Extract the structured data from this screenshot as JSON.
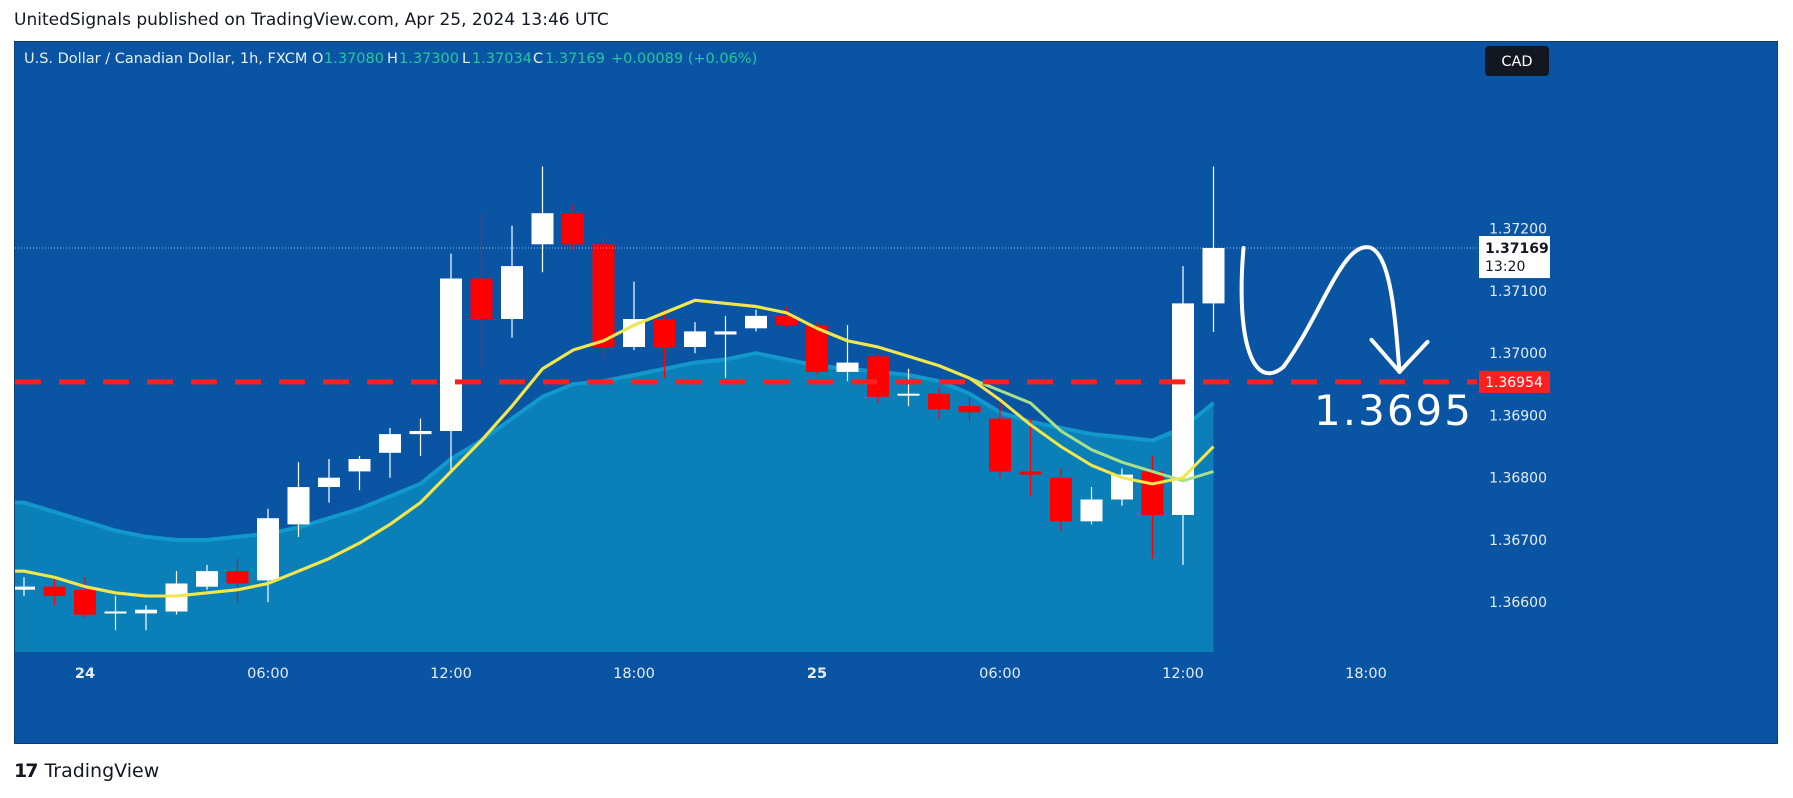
{
  "header": {
    "publisher_line": "UnitedSignals published on TradingView.com, Apr 25, 2024 13:46 UTC"
  },
  "footer": {
    "logo_mark": "17",
    "logo_text": "TradingView"
  },
  "chart_data": {
    "type": "candlestick",
    "symbol_line": "U.S. Dollar / Canadian Dollar, 1h, FXCM",
    "ohlc": {
      "o_label": "O",
      "o_value": "1.37080",
      "h_label": "H",
      "h_value": "1.37300",
      "l_label": "L",
      "l_value": "1.37034",
      "c_label": "C",
      "c_value": "1.37169",
      "change": "+0.00089 (+0.06%)"
    },
    "currency_badge": "CAD",
    "current_price": {
      "value": "1.37169",
      "countdown": "13:20"
    },
    "level_line": {
      "value": 1.36954,
      "label": "1.36954"
    },
    "annotation_text": "1.3695",
    "ylim": [
      1.3652,
      1.375
    ],
    "yticks": [
      {
        "v": 1.372,
        "label": "1.37200"
      },
      {
        "v": 1.371,
        "label": "1.37100"
      },
      {
        "v": 1.37,
        "label": "1.37000"
      },
      {
        "v": 1.369,
        "label": "1.36900"
      },
      {
        "v": 1.368,
        "label": "1.36800"
      },
      {
        "v": 1.367,
        "label": "1.36700"
      },
      {
        "v": 1.366,
        "label": "1.36600"
      }
    ],
    "xticks": [
      {
        "i": 2,
        "label": "24"
      },
      {
        "i": 8,
        "label": "06:00"
      },
      {
        "i": 14,
        "label": "12:00"
      },
      {
        "i": 20,
        "label": "18:00"
      },
      {
        "i": 26,
        "label": "25"
      },
      {
        "i": 32,
        "label": "06:00"
      },
      {
        "i": 38,
        "label": "12:00"
      },
      {
        "i": 44,
        "label": "18:00"
      }
    ],
    "candles": [
      {
        "o": 1.3662,
        "h": 1.3664,
        "l": 1.3661,
        "c": 1.36625
      },
      {
        "o": 1.36625,
        "h": 1.3664,
        "l": 1.36595,
        "c": 1.3661
      },
      {
        "o": 1.3662,
        "h": 1.3664,
        "l": 1.36575,
        "c": 1.3658
      },
      {
        "o": 1.36585,
        "h": 1.3661,
        "l": 1.36555,
        "c": 1.36585
      },
      {
        "o": 1.36582,
        "h": 1.36595,
        "l": 1.36555,
        "c": 1.36588
      },
      {
        "o": 1.36585,
        "h": 1.3665,
        "l": 1.3658,
        "c": 1.3663
      },
      {
        "o": 1.36625,
        "h": 1.3666,
        "l": 1.3662,
        "c": 1.3665
      },
      {
        "o": 1.3665,
        "h": 1.3667,
        "l": 1.366,
        "c": 1.3663
      },
      {
        "o": 1.36635,
        "h": 1.3675,
        "l": 1.366,
        "c": 1.36735
      },
      {
        "o": 1.36725,
        "h": 1.36825,
        "l": 1.36705,
        "c": 1.36785
      },
      {
        "o": 1.36785,
        "h": 1.3683,
        "l": 1.3676,
        "c": 1.368
      },
      {
        "o": 1.3681,
        "h": 1.36835,
        "l": 1.3678,
        "c": 1.3683
      },
      {
        "o": 1.3684,
        "h": 1.3688,
        "l": 1.368,
        "c": 1.3687
      },
      {
        "o": 1.3687,
        "h": 1.36895,
        "l": 1.36835,
        "c": 1.36875
      },
      {
        "o": 1.36875,
        "h": 1.3716,
        "l": 1.3681,
        "c": 1.3712
      },
      {
        "o": 1.3712,
        "h": 1.37225,
        "l": 1.36975,
        "c": 1.37055
      },
      {
        "o": 1.37055,
        "h": 1.37205,
        "l": 1.37025,
        "c": 1.3714
      },
      {
        "o": 1.37175,
        "h": 1.373,
        "l": 1.3713,
        "c": 1.37225
      },
      {
        "o": 1.37225,
        "h": 1.3724,
        "l": 1.37165,
        "c": 1.37175
      },
      {
        "o": 1.37175,
        "h": 1.37185,
        "l": 1.3699,
        "c": 1.3701
      },
      {
        "o": 1.3701,
        "h": 1.37115,
        "l": 1.37005,
        "c": 1.37055
      },
      {
        "o": 1.37055,
        "h": 1.3707,
        "l": 1.3696,
        "c": 1.3701
      },
      {
        "o": 1.3701,
        "h": 1.3705,
        "l": 1.37,
        "c": 1.37035
      },
      {
        "o": 1.3703,
        "h": 1.3706,
        "l": 1.3696,
        "c": 1.37035
      },
      {
        "o": 1.3704,
        "h": 1.3707,
        "l": 1.37035,
        "c": 1.3706
      },
      {
        "o": 1.3706,
        "h": 1.37075,
        "l": 1.3704,
        "c": 1.37045
      },
      {
        "o": 1.37045,
        "h": 1.3705,
        "l": 1.36965,
        "c": 1.3697
      },
      {
        "o": 1.3697,
        "h": 1.37045,
        "l": 1.36955,
        "c": 1.36985
      },
      {
        "o": 1.36995,
        "h": 1.37,
        "l": 1.3692,
        "c": 1.3693
      },
      {
        "o": 1.36935,
        "h": 1.36975,
        "l": 1.36915,
        "c": 1.36935
      },
      {
        "o": 1.36935,
        "h": 1.36945,
        "l": 1.36895,
        "c": 1.3691
      },
      {
        "o": 1.36915,
        "h": 1.3693,
        "l": 1.3689,
        "c": 1.36905
      },
      {
        "o": 1.36895,
        "h": 1.36925,
        "l": 1.368,
        "c": 1.3681
      },
      {
        "o": 1.3681,
        "h": 1.36895,
        "l": 1.3677,
        "c": 1.36805
      },
      {
        "o": 1.368,
        "h": 1.36815,
        "l": 1.36715,
        "c": 1.3673
      },
      {
        "o": 1.3673,
        "h": 1.36785,
        "l": 1.36725,
        "c": 1.36765
      },
      {
        "o": 1.36765,
        "h": 1.36815,
        "l": 1.36755,
        "c": 1.36805
      },
      {
        "o": 1.3681,
        "h": 1.36835,
        "l": 1.3667,
        "c": 1.3674
      },
      {
        "o": 1.3674,
        "h": 1.3714,
        "l": 1.3666,
        "c": 1.3708
      },
      {
        "o": 1.3708,
        "h": 1.373,
        "l": 1.37034,
        "c": 1.37169
      }
    ],
    "ema_yellow": [
      1.3665,
      1.3664,
      1.36625,
      1.36615,
      1.3661,
      1.3661,
      1.36615,
      1.3662,
      1.3663,
      1.3665,
      1.3667,
      1.36695,
      1.36725,
      1.3676,
      1.3681,
      1.3686,
      1.36915,
      1.36975,
      1.37005,
      1.3702,
      1.37045,
      1.37065,
      1.37085,
      1.3708,
      1.37075,
      1.37065,
      1.3704,
      1.3702,
      1.3701,
      1.36995,
      1.3698,
      1.3696,
      1.36925,
      1.36885,
      1.3685,
      1.3682,
      1.368,
      1.3679,
      1.368,
      1.3685
    ],
    "ema_green": [
      1.3665,
      1.3664,
      1.36625,
      1.36615,
      1.3661,
      1.3661,
      1.36615,
      1.3662,
      1.3663,
      1.3665,
      1.3667,
      1.36695,
      1.36725,
      1.3676,
      1.3681,
      1.3686,
      1.36915,
      1.36975,
      1.37005,
      1.3702,
      1.37045,
      1.37065,
      1.37085,
      1.3708,
      1.37075,
      1.37065,
      1.3704,
      1.3702,
      1.3701,
      1.36995,
      1.3698,
      1.3696,
      1.3694,
      1.3692,
      1.36875,
      1.36845,
      1.36825,
      1.3681,
      1.36795,
      1.3681
    ],
    "ema_fill": [
      1.3676,
      1.36745,
      1.3673,
      1.36715,
      1.36705,
      1.367,
      1.367,
      1.36705,
      1.3671,
      1.3672,
      1.36735,
      1.3675,
      1.3677,
      1.3679,
      1.3683,
      1.3686,
      1.36895,
      1.3693,
      1.3695,
      1.36955,
      1.36965,
      1.36975,
      1.36985,
      1.3699,
      1.37,
      1.3699,
      1.3698,
      1.36975,
      1.3697,
      1.36965,
      1.36955,
      1.36935,
      1.36905,
      1.3689,
      1.3688,
      1.3687,
      1.36865,
      1.3686,
      1.3688,
      1.3692
    ],
    "colors": {
      "background": "#0a55a3",
      "area_fill": "#0b7fb8",
      "area_edge": "#1198cc",
      "bull": "#ffffff",
      "bear": "#ff0000",
      "ema_yellow": "#f2e64a",
      "ema_green": "#a8e08a",
      "level": "#ff1f1f",
      "ohlc_value": "#26c6a0",
      "axis_text": "#e6ecf5"
    }
  }
}
